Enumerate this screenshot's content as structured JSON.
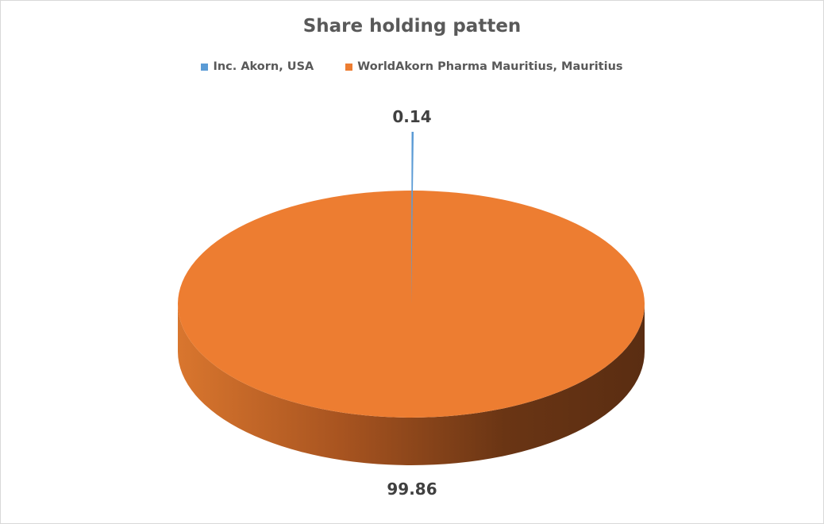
{
  "chart_data": {
    "type": "pie",
    "style": "3d-exploded",
    "title": "Share holding patten",
    "legend_position": "top",
    "slices": [
      {
        "label": "Inc. Akorn, USA",
        "value": 0.14,
        "color": "#5b9bd5",
        "data_label": "0.14",
        "exploded": true
      },
      {
        "label": "WorldAkorn Pharma Mauritius, Mauritius",
        "value": 99.86,
        "color": "#ed7d31",
        "data_label": "99.86",
        "exploded": false
      }
    ]
  }
}
